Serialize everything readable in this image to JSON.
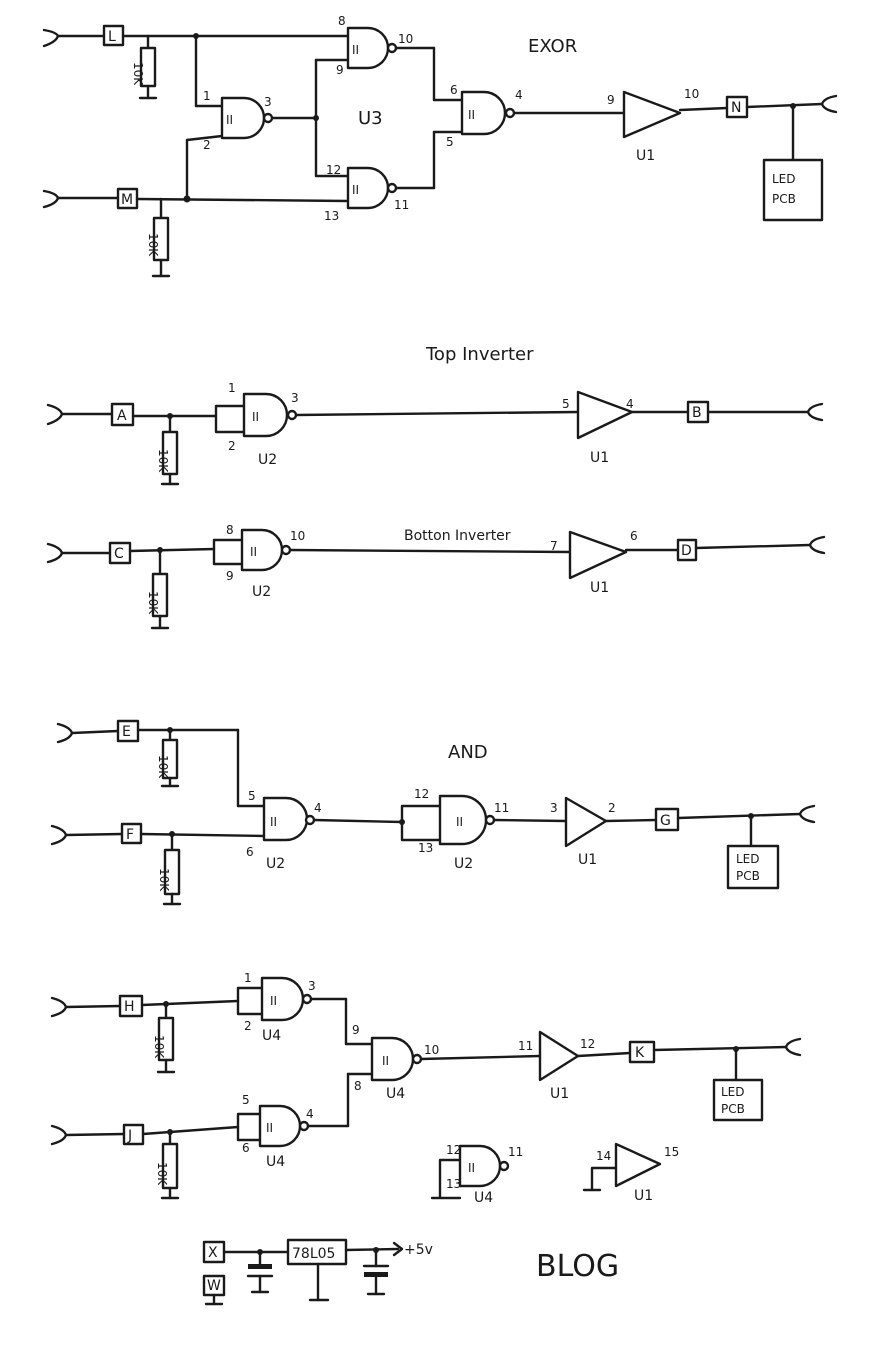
{
  "circuits": {
    "exor": {
      "title": "EXOR",
      "chip": "U3",
      "inputs": [
        "L",
        "M"
      ],
      "output": "N",
      "gate_marks": [
        "II",
        "II",
        "II",
        "II"
      ],
      "pins": {
        "g1_in_a": "1",
        "g1_in_b": "2",
        "g1_out": "3",
        "g2_in_a": "8",
        "g2_in_b": "9",
        "g2_out": "10",
        "g3_in_a": "12",
        "g3_in_b": "13",
        "g3_out": "11",
        "g4_in_a": "6",
        "g4_in_b": "5",
        "g4_out": "4",
        "buf_in": "9",
        "buf_out": "10"
      },
      "buffer_chip": "U1",
      "resistor": "10K",
      "led": [
        "LED",
        "PCB"
      ]
    },
    "top_inverter": {
      "title": "Top Inverter",
      "input": "A",
      "output": "B",
      "gate_mark": "II",
      "chip": "U2",
      "pins": {
        "in_a": "1",
        "in_b": "2",
        "out": "3",
        "buf_in": "5",
        "buf_out": "4"
      },
      "buffer_chip": "U1",
      "resistor": "10K"
    },
    "bottom_inverter": {
      "title": "Botton Inverter",
      "input": "C",
      "output": "D",
      "gate_mark": "II",
      "chip": "U2",
      "pins": {
        "in_a": "8",
        "in_b": "9",
        "out": "10",
        "buf_in": "7",
        "buf_out": "6"
      },
      "buffer_chip": "U1",
      "resistor": "10K"
    },
    "and": {
      "title": "AND",
      "inputs": [
        "E",
        "F"
      ],
      "output": "G",
      "gate_marks": [
        "II",
        "II"
      ],
      "chip": "U2",
      "pins": {
        "g1_in_a": "5",
        "g1_in_b": "6",
        "g1_out": "4",
        "g2_in_a": "12",
        "g2_in_b": "13",
        "g2_out": "11",
        "buf_in": "3",
        "buf_out": "2"
      },
      "buffer_chip": "U1",
      "resistor": "10K",
      "led": [
        "LED",
        "PCB"
      ]
    },
    "or": {
      "inputs": [
        "H",
        "J"
      ],
      "output": "K",
      "gate_marks": [
        "II",
        "II",
        "II"
      ],
      "chip": "U4",
      "pins": {
        "g1_in_a": "1",
        "g1_in_b": "2",
        "g1_out": "3",
        "g2_in_a": "5",
        "g2_in_b": "6",
        "g2_out": "4",
        "g3_in_a": "9",
        "g3_in_b": "8",
        "g3_out": "10",
        "buf_in": "11",
        "buf_out": "12"
      },
      "buffer_chip": "U1",
      "resistor": "10K",
      "led": [
        "LED",
        "PCB"
      ]
    },
    "spares": {
      "nand_chip": "U4",
      "nand_mark": "II",
      "nand_pins": [
        "12",
        "13",
        "11"
      ],
      "buffer_chip": "U1",
      "buffer_pins": [
        "14",
        "15"
      ]
    },
    "power": {
      "inputs": [
        "X",
        "W"
      ],
      "regulator": "78L05",
      "output": "+5v",
      "label": "BLOG"
    }
  }
}
